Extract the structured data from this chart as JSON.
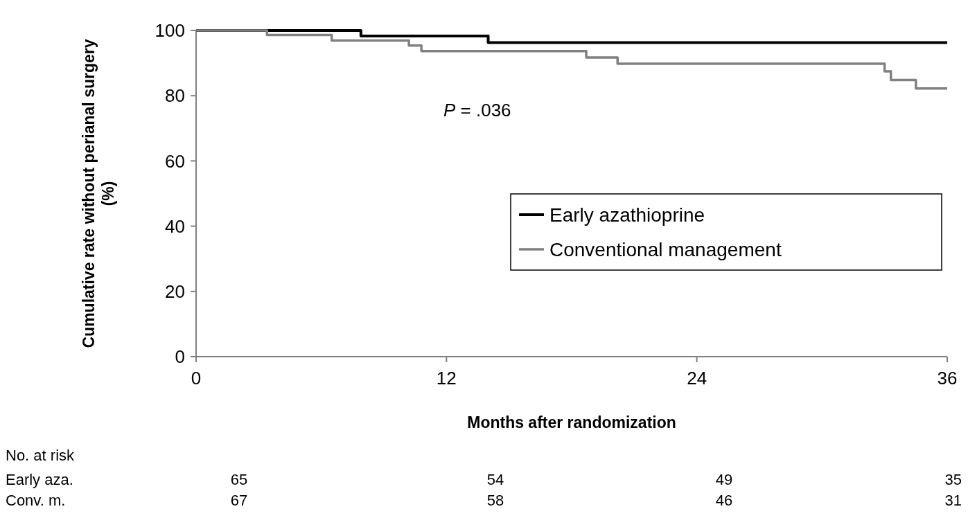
{
  "chart_data": {
    "type": "step",
    "xlabel": "Months after randomization",
    "ylabel": "Cumulative rate without perianal surgery (%)",
    "xlim": [
      0,
      36
    ],
    "xticks": [
      0,
      12,
      24,
      36
    ],
    "ylim": [
      0,
      100
    ],
    "yticks": [
      0,
      20,
      40,
      60,
      80,
      100
    ],
    "grid": false,
    "legend": "right",
    "series": [
      {
        "name": "Early azathioprine",
        "color": "#000000",
        "x": [
          0,
          7.9,
          14,
          36
        ],
        "values": [
          100,
          98.3,
          96.3,
          96.3
        ]
      },
      {
        "name": "Conventional management",
        "color": "#808080",
        "x": [
          0,
          3.4,
          6.5,
          10.2,
          10.8,
          18.7,
          20.2,
          33.0,
          33.3,
          34.5,
          36
        ],
        "values": [
          100,
          98.6,
          96.9,
          95.4,
          93.7,
          91.7,
          89.8,
          87.5,
          84.8,
          82.2,
          82.2
        ]
      }
    ],
    "annotations": [
      "P = .036",
      "No. at risk",
      "Early aza.",
      "65",
      "54",
      "49",
      "35",
      "Conv. m.",
      "67",
      "58",
      "46",
      "31"
    ]
  }
}
